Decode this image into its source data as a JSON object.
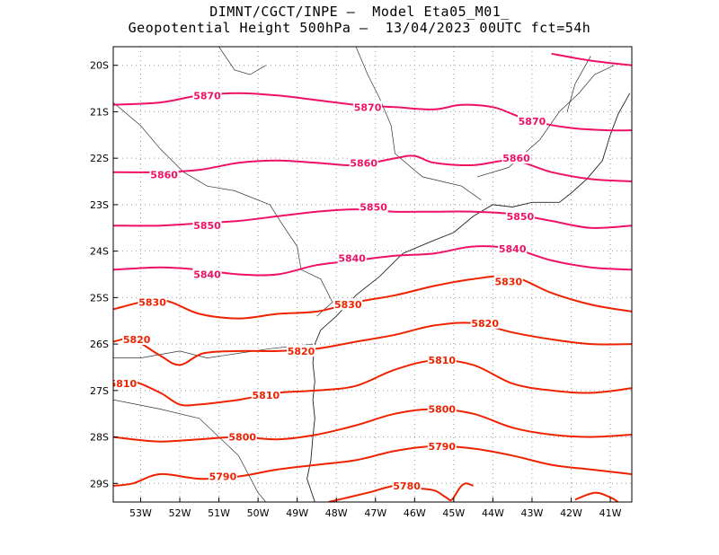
{
  "title": {
    "line1": "DIMNT/CGCT/INPE –  Model Eta05_M01_",
    "line2": "Geopotential Height 500hPa –  13/04/2023 00UTC fct=54h"
  },
  "map": {
    "lon_range": [
      -53.7,
      -40.45
    ],
    "lat_range": [
      -29.4,
      -19.6
    ],
    "lon_ticks": [
      {
        "v": -53,
        "label": "53W"
      },
      {
        "v": -52,
        "label": "52W"
      },
      {
        "v": -51,
        "label": "51W"
      },
      {
        "v": -50,
        "label": "50W"
      },
      {
        "v": -49,
        "label": "49W"
      },
      {
        "v": -48,
        "label": "48W"
      },
      {
        "v": -47,
        "label": "47W"
      },
      {
        "v": -46,
        "label": "46W"
      },
      {
        "v": -45,
        "label": "45W"
      },
      {
        "v": -44,
        "label": "44W"
      },
      {
        "v": -43,
        "label": "43W"
      },
      {
        "v": -42,
        "label": "42W"
      },
      {
        "v": -41,
        "label": "41W"
      }
    ],
    "lat_ticks": [
      {
        "v": -20,
        "label": "20S"
      },
      {
        "v": -21,
        "label": "21S"
      },
      {
        "v": -22,
        "label": "22S"
      },
      {
        "v": -23,
        "label": "23S"
      },
      {
        "v": -24,
        "label": "24S"
      },
      {
        "v": -25,
        "label": "25S"
      },
      {
        "v": -26,
        "label": "26S"
      },
      {
        "v": -27,
        "label": "27S"
      },
      {
        "v": -28,
        "label": "28S"
      },
      {
        "v": -29,
        "label": "29S"
      }
    ],
    "grid": "dotted",
    "contour_color_high": "#ee1166",
    "contour_color_low": "#ee2200",
    "contours": [
      {
        "level": "5870",
        "color": "#ee1166",
        "points": [
          [
            -53.7,
            -20.85
          ],
          [
            -52.5,
            -20.8
          ],
          [
            -51.5,
            -20.65
          ],
          [
            -50.5,
            -20.6
          ],
          [
            -49.5,
            -20.65
          ],
          [
            -48.5,
            -20.75
          ],
          [
            -47.5,
            -20.85
          ],
          [
            -46.5,
            -20.9
          ],
          [
            -45.5,
            -20.95
          ],
          [
            -44.8,
            -20.85
          ],
          [
            -44,
            -20.9
          ],
          [
            -43.5,
            -21.05
          ],
          [
            -43,
            -21.2
          ],
          [
            -42,
            -21.35
          ],
          [
            -41,
            -21.4
          ],
          [
            -40.45,
            -21.4
          ]
        ],
        "labels": [
          [
            -51.3,
            -20.65
          ],
          [
            -47.2,
            -20.9
          ],
          [
            -43,
            -21.2
          ]
        ]
      },
      {
        "level": "5870",
        "color": "#ee1166",
        "points": [
          [
            -42.5,
            -19.75
          ],
          [
            -41.5,
            -19.9
          ],
          [
            -40.45,
            -20.0
          ]
        ],
        "labels": []
      },
      {
        "level": "5860",
        "color": "#ee1166",
        "points": [
          [
            -53.7,
            -22.3
          ],
          [
            -52.5,
            -22.3
          ],
          [
            -51.5,
            -22.25
          ],
          [
            -50.5,
            -22.1
          ],
          [
            -49.5,
            -22.05
          ],
          [
            -48.5,
            -22.1
          ],
          [
            -47.5,
            -22.15
          ],
          [
            -46.5,
            -22.0
          ],
          [
            -46,
            -21.95
          ],
          [
            -45.5,
            -22.1
          ],
          [
            -44.5,
            -22.15
          ],
          [
            -43.5,
            -22.05
          ],
          [
            -42.5,
            -22.3
          ],
          [
            -41.5,
            -22.45
          ],
          [
            -40.45,
            -22.5
          ]
        ],
        "labels": [
          [
            -52.4,
            -22.35
          ],
          [
            -47.3,
            -22.1
          ],
          [
            -43.4,
            -22.0
          ]
        ]
      },
      {
        "level": "5850",
        "color": "#ee1166",
        "points": [
          [
            -53.7,
            -23.45
          ],
          [
            -52.5,
            -23.45
          ],
          [
            -51.5,
            -23.4
          ],
          [
            -50.5,
            -23.35
          ],
          [
            -49.5,
            -23.25
          ],
          [
            -48.5,
            -23.15
          ],
          [
            -47.5,
            -23.1
          ],
          [
            -46.5,
            -23.15
          ],
          [
            -45.5,
            -23.15
          ],
          [
            -44.5,
            -23.15
          ],
          [
            -43.5,
            -23.2
          ],
          [
            -42.5,
            -23.35
          ],
          [
            -41.5,
            -23.5
          ],
          [
            -40.45,
            -23.45
          ]
        ],
        "labels": [
          [
            -51.3,
            -23.45
          ],
          [
            -47.05,
            -23.05
          ],
          [
            -43.3,
            -23.25
          ]
        ]
      },
      {
        "level": "5840",
        "color": "#ee1166",
        "points": [
          [
            -53.7,
            -24.4
          ],
          [
            -52.5,
            -24.35
          ],
          [
            -51.5,
            -24.4
          ],
          [
            -50.5,
            -24.5
          ],
          [
            -49.5,
            -24.5
          ],
          [
            -48.5,
            -24.3
          ],
          [
            -47.5,
            -24.2
          ],
          [
            -46.5,
            -24.1
          ],
          [
            -45.5,
            -24.05
          ],
          [
            -44.5,
            -23.9
          ],
          [
            -43.5,
            -23.95
          ],
          [
            -42.5,
            -24.2
          ],
          [
            -41.5,
            -24.35
          ],
          [
            -40.45,
            -24.4
          ]
        ],
        "labels": [
          [
            -51.3,
            -24.5
          ],
          [
            -47.6,
            -24.15
          ],
          [
            -43.5,
            -23.95
          ]
        ]
      },
      {
        "level": "5830",
        "color": "#ee2200",
        "points": [
          [
            -53.7,
            -25.25
          ],
          [
            -52.5,
            -25.05
          ],
          [
            -51.5,
            -25.35
          ],
          [
            -50.5,
            -25.45
          ],
          [
            -49.5,
            -25.35
          ],
          [
            -48.5,
            -25.3
          ],
          [
            -47.5,
            -25.1
          ],
          [
            -46.5,
            -24.95
          ],
          [
            -45.5,
            -24.75
          ],
          [
            -44.5,
            -24.6
          ],
          [
            -43.5,
            -24.55
          ],
          [
            -42.5,
            -24.9
          ],
          [
            -41.5,
            -25.15
          ],
          [
            -40.45,
            -25.3
          ]
        ],
        "labels": [
          [
            -52.7,
            -25.1
          ],
          [
            -47.7,
            -25.15
          ],
          [
            -43.6,
            -24.65
          ]
        ]
      },
      {
        "level": "5820",
        "color": "#ee2200",
        "points": [
          [
            -53.7,
            -25.95
          ],
          [
            -53.2,
            -25.9
          ],
          [
            -52.5,
            -26.25
          ],
          [
            -52,
            -26.45
          ],
          [
            -51.4,
            -26.2
          ],
          [
            -50.5,
            -26.15
          ],
          [
            -49.5,
            -26.15
          ],
          [
            -48.5,
            -26.1
          ],
          [
            -47.5,
            -25.95
          ],
          [
            -46.5,
            -25.8
          ],
          [
            -45.5,
            -25.6
          ],
          [
            -44.5,
            -25.55
          ],
          [
            -43.5,
            -25.75
          ],
          [
            -42.5,
            -25.9
          ],
          [
            -41.5,
            -26.0
          ],
          [
            -40.45,
            -26.0
          ]
        ],
        "labels": [
          [
            -53.1,
            -25.9
          ],
          [
            -48.9,
            -26.15
          ],
          [
            -44.2,
            -25.55
          ]
        ]
      },
      {
        "level": "5810",
        "color": "#ee2200",
        "points": [
          [
            -53.7,
            -26.85
          ],
          [
            -53.2,
            -26.8
          ],
          [
            -52.5,
            -27.05
          ],
          [
            -52,
            -27.3
          ],
          [
            -51.5,
            -27.3
          ],
          [
            -50.5,
            -27.2
          ],
          [
            -49.5,
            -27.05
          ],
          [
            -48.5,
            -27.0
          ],
          [
            -47.5,
            -26.9
          ],
          [
            -46.5,
            -26.55
          ],
          [
            -45.5,
            -26.35
          ],
          [
            -44.5,
            -26.45
          ],
          [
            -43.5,
            -26.85
          ],
          [
            -42.5,
            -27.0
          ],
          [
            -41.5,
            -27.05
          ],
          [
            -40.45,
            -26.95
          ]
        ],
        "labels": [
          [
            -53.45,
            -26.85
          ],
          [
            -49.8,
            -27.1
          ],
          [
            -45.3,
            -26.35
          ]
        ]
      },
      {
        "level": "5800",
        "color": "#ee2200",
        "points": [
          [
            -53.7,
            -28.0
          ],
          [
            -53.2,
            -28.05
          ],
          [
            -52.5,
            -28.1
          ],
          [
            -51.5,
            -28.05
          ],
          [
            -50.5,
            -28.0
          ],
          [
            -49.5,
            -28.05
          ],
          [
            -48.5,
            -27.95
          ],
          [
            -47.5,
            -27.75
          ],
          [
            -46.5,
            -27.5
          ],
          [
            -45.5,
            -27.4
          ],
          [
            -44.5,
            -27.5
          ],
          [
            -43.5,
            -27.8
          ],
          [
            -42.5,
            -27.95
          ],
          [
            -41.5,
            -28.0
          ],
          [
            -40.45,
            -27.95
          ]
        ],
        "labels": [
          [
            -50.4,
            -28.0
          ],
          [
            -45.3,
            -27.4
          ]
        ]
      },
      {
        "level": "5790",
        "color": "#ee2200",
        "points": [
          [
            -53.7,
            -29.05
          ],
          [
            -53.2,
            -29.0
          ],
          [
            -52.5,
            -28.8
          ],
          [
            -51.5,
            -28.9
          ],
          [
            -50.5,
            -28.85
          ],
          [
            -49.5,
            -28.7
          ],
          [
            -48.5,
            -28.6
          ],
          [
            -47.5,
            -28.5
          ],
          [
            -46.5,
            -28.3
          ],
          [
            -45.5,
            -28.2
          ],
          [
            -44.5,
            -28.25
          ],
          [
            -43.5,
            -28.4
          ],
          [
            -42.5,
            -28.6
          ],
          [
            -41.5,
            -28.7
          ],
          [
            -40.45,
            -28.8
          ]
        ],
        "labels": [
          [
            -50.9,
            -28.85
          ],
          [
            -45.3,
            -28.2
          ]
        ]
      },
      {
        "level": "5780",
        "color": "#ee2200",
        "points": [
          [
            -48.2,
            -29.4
          ],
          [
            -47.2,
            -29.2
          ],
          [
            -46.5,
            -29.05
          ],
          [
            -46,
            -29.1
          ],
          [
            -45.5,
            -29.15
          ],
          [
            -45.2,
            -29.3
          ],
          [
            -45.05,
            -29.35
          ],
          [
            -44.85,
            -29.1
          ],
          [
            -44.7,
            -29.0
          ],
          [
            -44.5,
            -29.05
          ]
        ],
        "labels": [
          [
            -46.2,
            -29.05
          ]
        ]
      },
      {
        "level": "5780",
        "color": "#ee2200",
        "points": [
          [
            -41.9,
            -29.35
          ],
          [
            -41.4,
            -29.2
          ],
          [
            -41.0,
            -29.3
          ],
          [
            -40.8,
            -29.4
          ]
        ],
        "labels": []
      }
    ],
    "coastline": [
      [
        -48.55,
        -29.4
      ],
      [
        -48.75,
        -28.9
      ],
      [
        -48.65,
        -28.5
      ],
      [
        -48.6,
        -28.0
      ],
      [
        -48.55,
        -27.6
      ],
      [
        -48.6,
        -27.2
      ],
      [
        -48.55,
        -26.8
      ],
      [
        -48.6,
        -26.4
      ],
      [
        -48.55,
        -26.0
      ],
      [
        -48.4,
        -25.7
      ],
      [
        -48.0,
        -25.4
      ],
      [
        -47.5,
        -24.95
      ],
      [
        -46.9,
        -24.55
      ],
      [
        -46.3,
        -24.05
      ],
      [
        -45.6,
        -23.8
      ],
      [
        -45.0,
        -23.6
      ],
      [
        -44.5,
        -23.25
      ],
      [
        -44.0,
        -23.0
      ],
      [
        -43.5,
        -23.05
      ],
      [
        -43.0,
        -22.95
      ],
      [
        -42.3,
        -22.95
      ],
      [
        -42.0,
        -22.75
      ],
      [
        -41.6,
        -22.45
      ],
      [
        -41.2,
        -22.05
      ],
      [
        -41.0,
        -21.5
      ],
      [
        -40.8,
        -21.05
      ],
      [
        -40.5,
        -20.6
      ]
    ],
    "borders": [
      [
        [
          -53.7,
          -20.8
        ],
        [
          -53.0,
          -21.3
        ],
        [
          -52.5,
          -21.8
        ],
        [
          -51.9,
          -22.3
        ],
        [
          -51.3,
          -22.6
        ],
        [
          -50.6,
          -22.7
        ],
        [
          -49.7,
          -23.0
        ],
        [
          -49.4,
          -23.4
        ],
        [
          -49.0,
          -23.9
        ],
        [
          -48.9,
          -24.4
        ],
        [
          -48.4,
          -24.6
        ],
        [
          -48.1,
          -25.1
        ],
        [
          -48.5,
          -25.4
        ]
      ],
      [
        [
          -53.7,
          -26.3
        ],
        [
          -53.0,
          -26.3
        ],
        [
          -52.0,
          -26.15
        ],
        [
          -51.3,
          -26.3
        ],
        [
          -50.5,
          -26.2
        ],
        [
          -49.7,
          -26.1
        ],
        [
          -48.6,
          -26.0
        ]
      ],
      [
        [
          -53.7,
          -27.2
        ],
        [
          -52.5,
          -27.4
        ],
        [
          -51.5,
          -27.6
        ],
        [
          -50.5,
          -28.4
        ],
        [
          -50.0,
          -29.2
        ],
        [
          -49.8,
          -29.4
        ]
      ],
      [
        [
          -47.5,
          -19.6
        ],
        [
          -47.2,
          -20.2
        ],
        [
          -46.9,
          -20.7
        ],
        [
          -46.6,
          -21.3
        ],
        [
          -46.5,
          -21.9
        ],
        [
          -45.8,
          -22.4
        ],
        [
          -44.8,
          -22.6
        ],
        [
          -44.3,
          -22.9
        ]
      ],
      [
        [
          -44.4,
          -22.4
        ],
        [
          -43.6,
          -22.2
        ],
        [
          -42.8,
          -21.6
        ],
        [
          -42.3,
          -21.0
        ],
        [
          -41.8,
          -20.6
        ],
        [
          -41.4,
          -20.2
        ],
        [
          -40.9,
          -20.0
        ]
      ],
      [
        [
          -42.1,
          -21.0
        ],
        [
          -41.9,
          -20.4
        ],
        [
          -41.5,
          -19.8
        ]
      ],
      [
        [
          -51.0,
          -19.6
        ],
        [
          -50.6,
          -20.1
        ],
        [
          -50.2,
          -20.2
        ],
        [
          -49.8,
          -20.0
        ]
      ]
    ]
  }
}
